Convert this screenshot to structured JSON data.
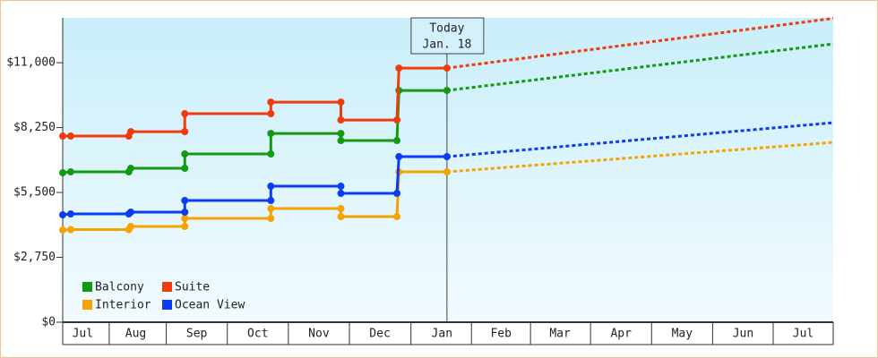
{
  "chart_data": {
    "type": "line",
    "ylim": [
      0,
      12900
    ],
    "yticks": [
      {
        "value": 0,
        "label": "$0"
      },
      {
        "value": 2750,
        "label": "$2,750"
      },
      {
        "value": 5500,
        "label": "$5,500"
      },
      {
        "value": 8250,
        "label": "$8,250"
      },
      {
        "value": 11000,
        "label": "$11,000"
      }
    ],
    "xlim": [
      0,
      385
    ],
    "xticks": [
      {
        "value": 10,
        "label": "Jul"
      },
      {
        "value": 36.5,
        "label": "Aug"
      },
      {
        "value": 67,
        "label": "Sep"
      },
      {
        "value": 97.5,
        "label": "Oct"
      },
      {
        "value": 128,
        "label": "Nov"
      },
      {
        "value": 158.5,
        "label": "Dec"
      },
      {
        "value": 189.5,
        "label": "Jan"
      },
      {
        "value": 219,
        "label": "Feb"
      },
      {
        "value": 248.5,
        "label": "Mar"
      },
      {
        "value": 279,
        "label": "Apr"
      },
      {
        "value": 309.5,
        "label": "May"
      },
      {
        "value": 340,
        "label": "Jun"
      },
      {
        "value": 370,
        "label": "Jul"
      }
    ],
    "x": [
      0,
      4,
      33,
      34,
      61,
      61,
      104,
      104,
      139,
      139,
      167,
      168,
      192
    ],
    "today": {
      "x": 192,
      "label": [
        "Today",
        "Jan. 18"
      ]
    },
    "legend": "lower left",
    "series": [
      {
        "name": "Balcony",
        "color": "#139a13",
        "values": [
          6334,
          6372,
          6372,
          6524,
          6524,
          7131,
          7131,
          8003,
          8003,
          7700,
          7700,
          9824,
          9824
        ],
        "projection": {
          "x": [
            192,
            385
          ],
          "values": [
            9824,
            11796
          ]
        }
      },
      {
        "name": "Suite",
        "color": "#f03c0c",
        "values": [
          7890,
          7890,
          7890,
          8079,
          8079,
          8838,
          8838,
          9331,
          9331,
          8572,
          8572,
          10772,
          10772
        ],
        "projection": {
          "x": [
            192,
            385
          ],
          "values": [
            10772,
            12880
          ]
        }
      },
      {
        "name": "Interior",
        "color": "#f5a300",
        "values": [
          3907,
          3926,
          3926,
          4059,
          4059,
          4400,
          4400,
          4817,
          4817,
          4476,
          4476,
          6372,
          6372
        ],
        "projection": {
          "x": [
            192,
            385
          ],
          "values": [
            6372,
            7624
          ]
        }
      },
      {
        "name": "Ocean View",
        "color": "#0a3cf0",
        "values": [
          4552,
          4590,
          4590,
          4665,
          4665,
          5159,
          5159,
          5765,
          5765,
          5462,
          5462,
          7017,
          7017
        ],
        "projection": {
          "x": [
            192,
            385
          ],
          "values": [
            7017,
            8458
          ]
        }
      }
    ]
  }
}
